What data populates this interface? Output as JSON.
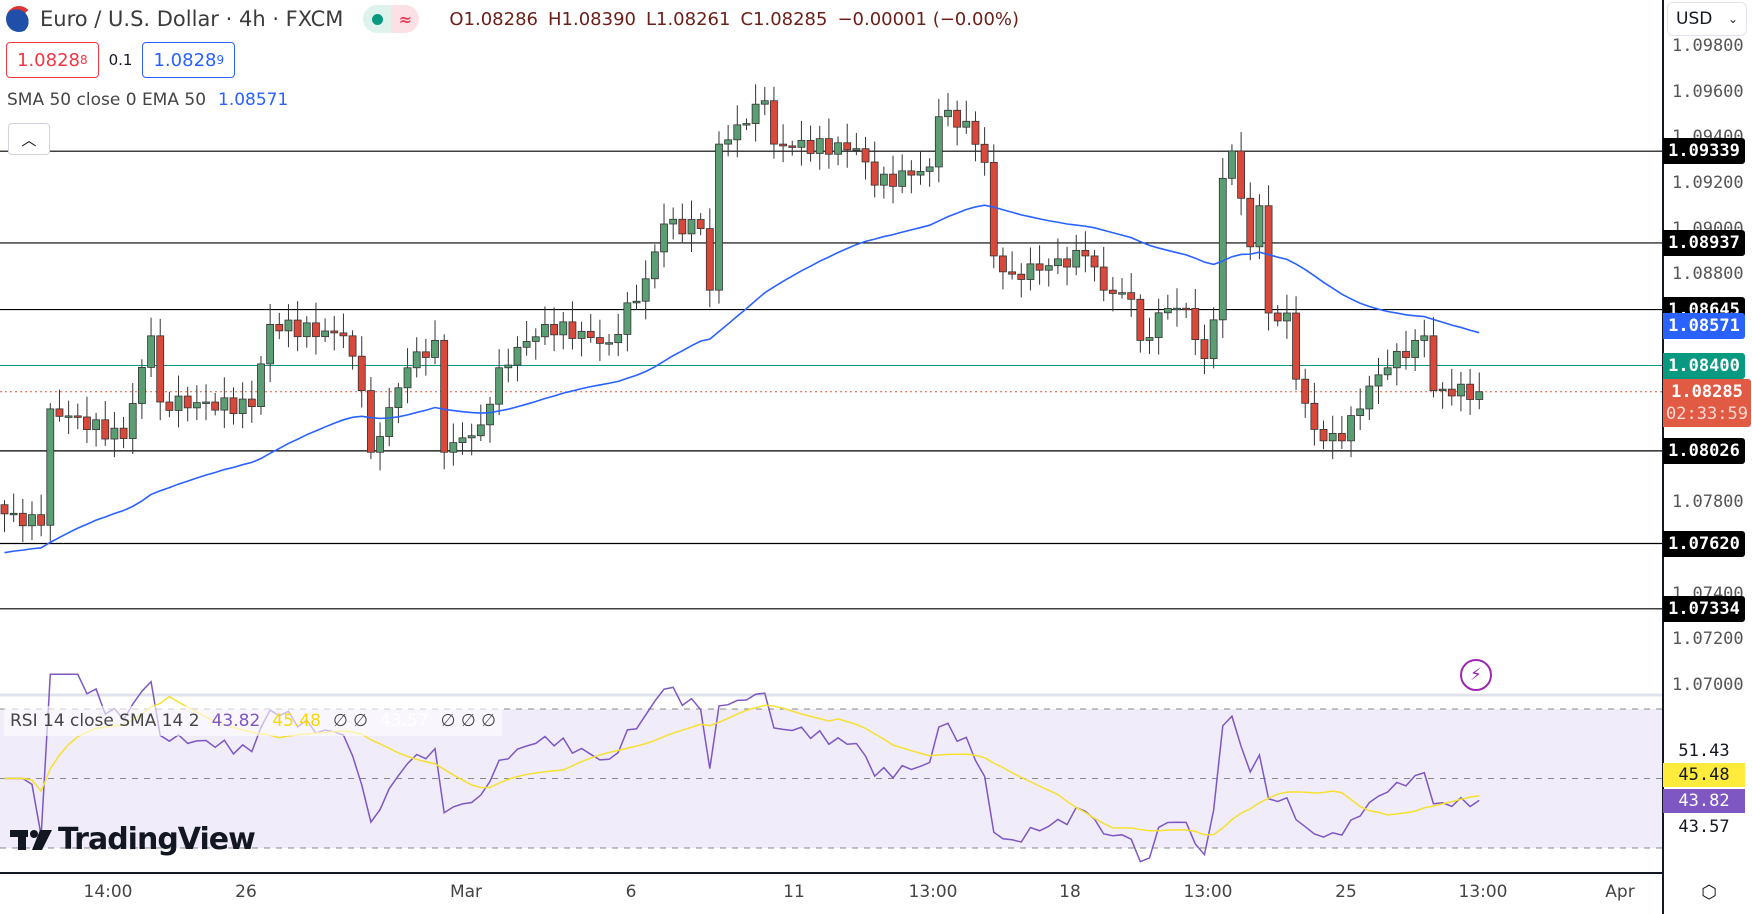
{
  "header": {
    "title": "Euro / U.S. Dollar · 4h · FXCM",
    "open": "O1.08286",
    "high": "H1.08390",
    "low": "L1.08261",
    "close": "C1.08285",
    "change": "−0.00001 (−0.00%)",
    "market_status_icon": "market-open-dot",
    "data_icon": "delayed-data-icon"
  },
  "trade": {
    "sell_main": "1.0828",
    "sell_sup": "8",
    "spread": "0.1",
    "buy_main": "1.0828",
    "buy_sup": "9"
  },
  "legend": {
    "label": "SMA 50 close 0 EMA 50",
    "value": "1.08571"
  },
  "rsi_legend": {
    "label": "RSI 14 close SMA 14 2",
    "rsi": "43.82",
    "sma": "45.48",
    "e1": "∅ ∅",
    "v3": "43.57",
    "e2": "∅ ∅ ∅"
  },
  "logo": "TradingView",
  "currency": "USD",
  "price_ticks": [
    "1.09800",
    "1.09600",
    "1.09400",
    "1.09200",
    "1.09000",
    "1.08800",
    "1.07800",
    "1.07400",
    "1.07200",
    "1.07000"
  ],
  "levels": [
    {
      "value": "1.09339",
      "color": "#000000"
    },
    {
      "value": "1.08937",
      "color": "#000000"
    },
    {
      "value": "1.08645",
      "color": "#000000"
    },
    {
      "value": "1.08026",
      "color": "#000000"
    },
    {
      "value": "1.07620",
      "color": "#000000"
    },
    {
      "value": "1.07334",
      "color": "#000000"
    }
  ],
  "ema_tag": {
    "value": "1.08571",
    "color": "#2962ff"
  },
  "alert_line": {
    "value": "1.08400",
    "color": "#089981"
  },
  "current": {
    "value": "1.08285",
    "countdown": "02:33:59",
    "color": "#e05a44"
  },
  "rsi_axis": [
    {
      "value": "51.43",
      "bg": "",
      "fg": "#131722"
    },
    {
      "value": "45.48",
      "bg": "#ffeb3b",
      "fg": "#131722"
    },
    {
      "value": "43.82",
      "bg": "#7e57c2",
      "fg": "#ffffff"
    },
    {
      "value": "43.57",
      "bg": "",
      "fg": "#131722"
    }
  ],
  "time_labels": [
    "14:00",
    "26",
    "Mar",
    "6",
    "11",
    "13:00",
    "18",
    "13:00",
    "25",
    "13:00",
    "Apr"
  ],
  "colors": {
    "up": "#5b9e74",
    "down": "#d9493b",
    "ema": "#2962ff",
    "rsi": "#7e57c2",
    "rsi_sma": "#f5e130",
    "rsi_band": "#f0ecfa"
  },
  "chart_data": {
    "type": "candlestick",
    "symbol": "EURUSD",
    "timeframe": "4h",
    "ylim": [
      1.069,
      1.0982
    ],
    "close_keypoints": [
      [
        0,
        1.0775
      ],
      [
        4,
        1.077
      ],
      [
        5,
        1.0821
      ],
      [
        13,
        1.0808
      ],
      [
        16,
        1.0853
      ],
      [
        17,
        1.0824
      ],
      [
        27,
        1.0822
      ],
      [
        29,
        1.0858
      ],
      [
        37,
        1.0853
      ],
      [
        39,
        1.0829
      ],
      [
        40,
        1.0802
      ],
      [
        44,
        1.0839
      ],
      [
        47,
        1.0851
      ],
      [
        48,
        1.0802
      ],
      [
        52,
        1.0814
      ],
      [
        54,
        1.0839
      ],
      [
        59,
        1.0858
      ],
      [
        66,
        1.085
      ],
      [
        70,
        1.0878
      ],
      [
        72,
        1.0902
      ],
      [
        76,
        1.09
      ],
      [
        77,
        1.0873
      ],
      [
        78,
        1.0937
      ],
      [
        81,
        1.0946
      ],
      [
        83,
        1.0956
      ],
      [
        84,
        1.0937
      ],
      [
        93,
        1.0935
      ],
      [
        95,
        1.0919
      ],
      [
        101,
        1.0927
      ],
      [
        102,
        1.0949
      ],
      [
        105,
        1.0947
      ],
      [
        107,
        1.0929
      ],
      [
        108,
        1.0888
      ],
      [
        110,
        1.088
      ],
      [
        118,
        1.0888
      ],
      [
        120,
        1.0873
      ],
      [
        123,
        1.0869
      ],
      [
        124,
        1.0851
      ],
      [
        127,
        1.0865
      ],
      [
        129,
        1.0865
      ],
      [
        131,
        1.0843
      ],
      [
        132,
        1.086
      ],
      [
        133,
        1.0922
      ],
      [
        134,
        1.0934
      ],
      [
        136,
        1.0892
      ],
      [
        137,
        1.091
      ],
      [
        138,
        1.0863
      ],
      [
        140,
        1.0863
      ],
      [
        141,
        1.0834
      ],
      [
        143,
        1.0812
      ],
      [
        144,
        1.0807
      ],
      [
        146,
        1.0807
      ],
      [
        149,
        1.0831
      ],
      [
        151,
        1.0839
      ],
      [
        154,
        1.0851
      ],
      [
        155,
        1.0853
      ],
      [
        156,
        1.0829
      ],
      [
        161,
        1.08285
      ]
    ],
    "ema_period": 50,
    "rsi_period": 14,
    "rsi_sma_period": 14,
    "rsi_bands": [
      70,
      50,
      30
    ]
  }
}
